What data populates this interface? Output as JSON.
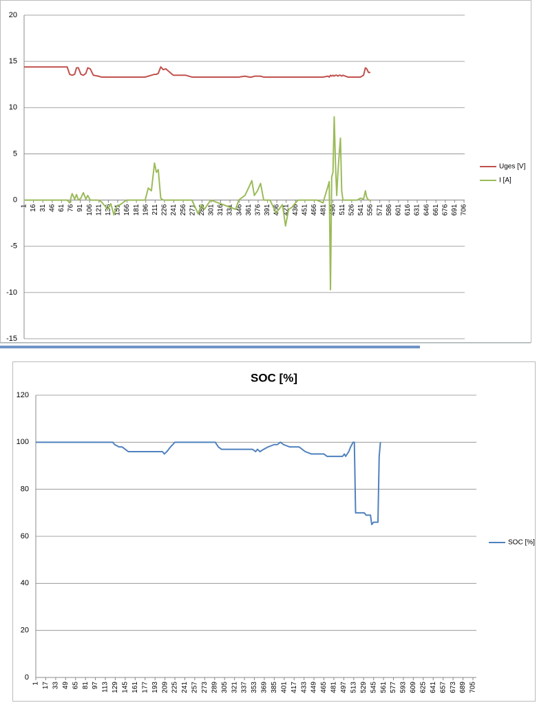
{
  "chart_data": [
    {
      "type": "line",
      "x": [
        1,
        70,
        74,
        78,
        82,
        85,
        88,
        92,
        96,
        100,
        103,
        107,
        112,
        120,
        125,
        135,
        140,
        145,
        150,
        155,
        165,
        195,
        200,
        205,
        210,
        213,
        216,
        220,
        224,
        228,
        240,
        260,
        270,
        280,
        285,
        290,
        300,
        340,
        345,
        355,
        362,
        366,
        370,
        375,
        380,
        385,
        395,
        405,
        415,
        420,
        425,
        430,
        440,
        470,
        480,
        488,
        490,
        492,
        494,
        496,
        498,
        500,
        502,
        504,
        506,
        508,
        510,
        512,
        520,
        535,
        540,
        545,
        548,
        550,
        553,
        556
      ],
      "series": [
        {
          "name": "Uges [V]",
          "color": "#c0504d",
          "values": [
            14.4,
            14.4,
            13.6,
            13.5,
            13.6,
            14.3,
            14.3,
            13.6,
            13.5,
            13.7,
            14.3,
            14.2,
            13.5,
            13.4,
            13.3,
            13.3,
            13.3,
            13.3,
            13.3,
            13.3,
            13.3,
            13.3,
            13.4,
            13.5,
            13.6,
            13.6,
            13.7,
            14.4,
            14.1,
            14.2,
            13.5,
            13.5,
            13.3,
            13.3,
            13.3,
            13.3,
            13.3,
            13.3,
            13.3,
            13.4,
            13.3,
            13.3,
            13.4,
            13.4,
            13.4,
            13.3,
            13.3,
            13.3,
            13.3,
            13.3,
            13.3,
            13.3,
            13.3,
            13.3,
            13.3,
            13.4,
            13.3,
            13.5,
            13.4,
            13.5,
            13.4,
            13.5,
            13.5,
            13.4,
            13.5,
            13.5,
            13.4,
            13.5,
            13.3,
            13.3,
            13.3,
            13.5,
            14.3,
            14.2,
            13.8,
            13.8
          ]
        },
        {
          "name": "I [A]",
          "color": "#9bbb59",
          "values": [
            0,
            0,
            -0.3,
            0.7,
            0.1,
            0.6,
            0,
            0.2,
            0.8,
            0.1,
            0.5,
            0,
            0,
            0,
            -0.2,
            -1,
            -0.4,
            -1.6,
            -0.6,
            -0.5,
            0,
            0,
            1.3,
            1,
            4,
            3,
            3.3,
            0.2,
            0,
            0,
            0,
            0,
            0,
            -1.5,
            -0.5,
            -1,
            0,
            -1,
            0,
            0.5,
            1.5,
            2.1,
            0.5,
            1,
            1.8,
            0,
            0,
            -1.4,
            -0.5,
            -2.8,
            -1,
            -0.8,
            0,
            0,
            -0.3,
            1.5,
            2,
            -9.7,
            2.5,
            3,
            9,
            4,
            0.5,
            3,
            5,
            6.7,
            1,
            0,
            0,
            0,
            0.2,
            0.1,
            1,
            0.3,
            0,
            0
          ]
        }
      ],
      "xlim": [
        1,
        706
      ],
      "xticks": [
        1,
        16,
        31,
        46,
        61,
        76,
        91,
        106,
        121,
        136,
        151,
        166,
        181,
        196,
        211,
        226,
        241,
        256,
        271,
        286,
        301,
        316,
        331,
        346,
        361,
        376,
        391,
        406,
        421,
        436,
        451,
        466,
        481,
        496,
        511,
        526,
        541,
        556,
        571,
        586,
        601,
        616,
        631,
        646,
        661,
        676,
        691,
        706
      ],
      "ylim": [
        -15,
        20
      ],
      "yticks": [
        -15,
        -10,
        -5,
        0,
        5,
        10,
        15,
        20
      ],
      "grid": true,
      "legend": "right"
    },
    {
      "type": "line",
      "title": "SOC [%]",
      "x": [
        1,
        125,
        128,
        135,
        140,
        145,
        150,
        205,
        208,
        212,
        218,
        225,
        290,
        295,
        300,
        350,
        355,
        358,
        362,
        368,
        375,
        385,
        390,
        395,
        400,
        410,
        425,
        435,
        445,
        465,
        470,
        495,
        498,
        500,
        505,
        508,
        512,
        514,
        516,
        530,
        533,
        540,
        542,
        545,
        552,
        554,
        556
      ],
      "series": [
        {
          "name": "SOC [%]",
          "color": "#4f81bd",
          "values": [
            100,
            100,
            99,
            98,
            98,
            97,
            96,
            96,
            95,
            96,
            98,
            100,
            100,
            98,
            97,
            97,
            96,
            97,
            96,
            97,
            98,
            99,
            99,
            100,
            99,
            98,
            98,
            96,
            95,
            95,
            94,
            94,
            95,
            94,
            96,
            98,
            100,
            100,
            70,
            70,
            69,
            69,
            65,
            66,
            66,
            94,
            100
          ]
        }
      ],
      "xlim": [
        1,
        705
      ],
      "xticks": [
        1,
        17,
        33,
        49,
        65,
        81,
        97,
        113,
        129,
        145,
        161,
        177,
        193,
        209,
        225,
        241,
        257,
        273,
        289,
        305,
        321,
        337,
        353,
        369,
        385,
        401,
        417,
        433,
        449,
        465,
        481,
        497,
        513,
        529,
        545,
        561,
        577,
        593,
        609,
        625,
        641,
        657,
        673,
        689,
        705
      ],
      "ylim": [
        0,
        120
      ],
      "yticks": [
        0,
        20,
        40,
        60,
        80,
        100,
        120
      ],
      "grid": true,
      "legend": "right"
    }
  ]
}
